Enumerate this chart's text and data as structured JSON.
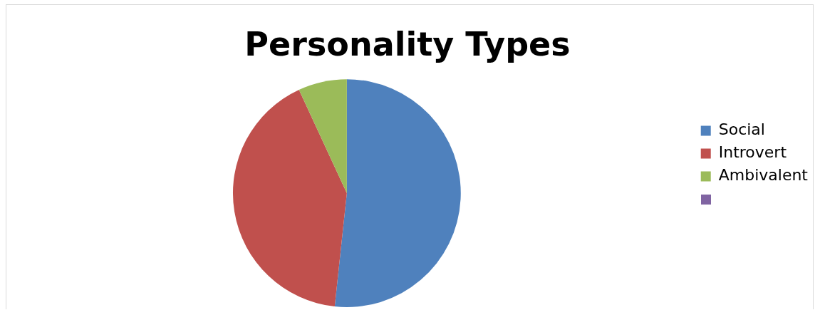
{
  "chart_data": {
    "type": "pie",
    "title": "Personality Types",
    "categories": [
      "Social",
      "Introvert",
      "Ambivalent",
      null
    ],
    "values": [
      51.7,
      41.4,
      6.9,
      0
    ],
    "colors": [
      "#4f81bd",
      "#c0504d",
      "#9bbb59",
      "#8064a2"
    ],
    "legend": "right"
  }
}
